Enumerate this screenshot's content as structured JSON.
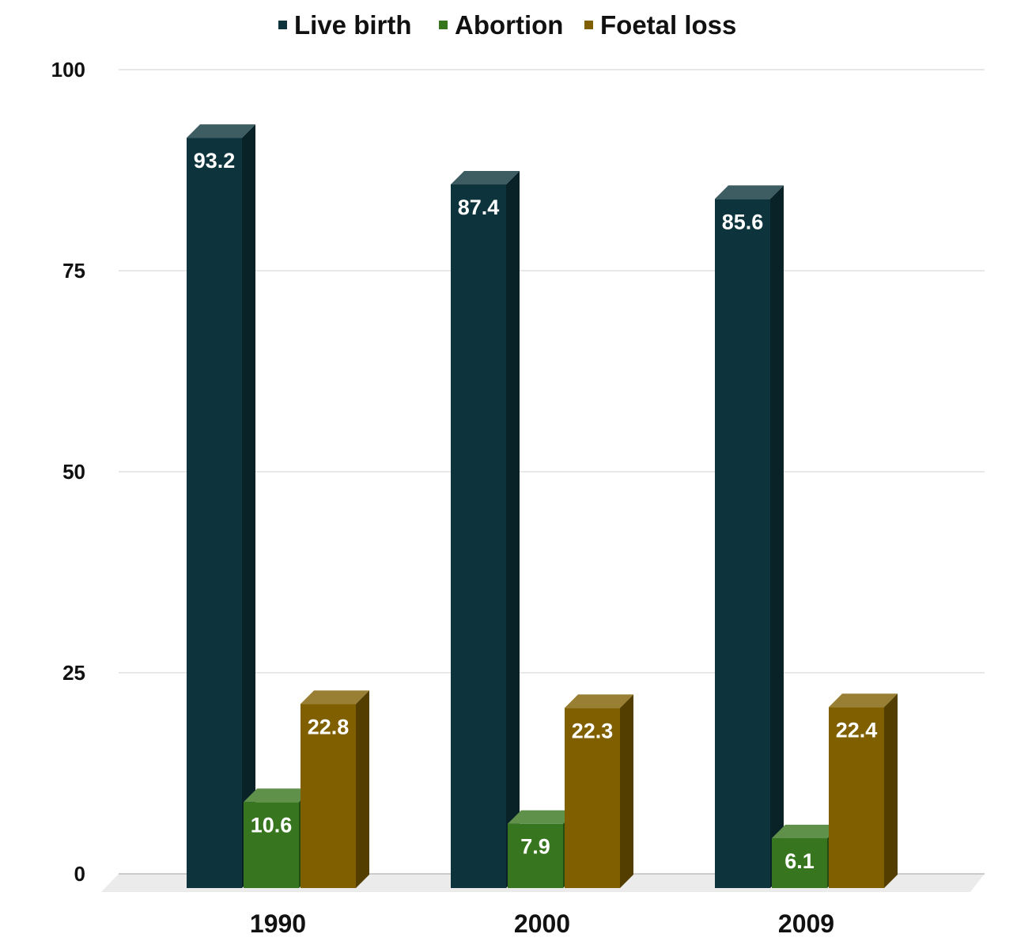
{
  "chart_data": {
    "type": "bar",
    "categories": [
      "1990",
      "2000",
      "2009"
    ],
    "series": [
      {
        "name": "Live birth",
        "values": [
          93.2,
          87.4,
          85.6
        ],
        "color": "#0d343c"
      },
      {
        "name": "Abortion",
        "values": [
          10.6,
          7.9,
          6.1
        ],
        "color": "#37761e"
      },
      {
        "name": "Foetal loss",
        "values": [
          22.8,
          22.3,
          22.4
        ],
        "color": "#7f5f00"
      }
    ],
    "yticks": [
      0,
      25,
      50,
      75,
      100
    ],
    "ylim": [
      0,
      100
    ],
    "grid": true,
    "legend_position": "top-center"
  }
}
